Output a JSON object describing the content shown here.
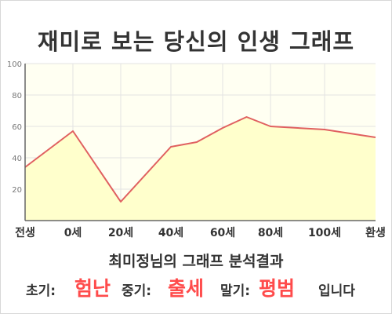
{
  "title": "재미로 보는 당신의 인생 그래프",
  "chart_data": {
    "type": "area",
    "x_labels": [
      "전생",
      "0세",
      "20세",
      "40세",
      "60세",
      "80세",
      "100세",
      "환생"
    ],
    "y_ticks": [
      100,
      80,
      60,
      40,
      20
    ],
    "ylim": [
      0,
      100
    ],
    "grid": true,
    "colors": {
      "line": "#e06060",
      "fill": "#ffffcc",
      "plot_bg": "#fffff2",
      "grid": "#e3e3e3"
    },
    "series": [
      {
        "points": [
          {
            "x": "전생",
            "y": 34
          },
          {
            "x": "0세",
            "y": 57
          },
          {
            "x": "20세",
            "y": 12
          },
          {
            "x": "40세",
            "y": 47
          },
          {
            "x": "50세",
            "y": 50
          },
          {
            "x": "60세",
            "y": 59
          },
          {
            "x": "70세",
            "y": 66
          },
          {
            "x": "80세",
            "y": 60
          },
          {
            "x": "100세",
            "y": 58
          },
          {
            "x": "환생",
            "y": 53
          }
        ]
      }
    ]
  },
  "caption": "최미정님의 그래프 분석결과",
  "result": {
    "early_label": "초기:",
    "early_value": "험난",
    "middle_label": "중기:",
    "middle_value": "출세",
    "late_label": "말기:",
    "late_value": "평범",
    "suffix": "입니다"
  }
}
